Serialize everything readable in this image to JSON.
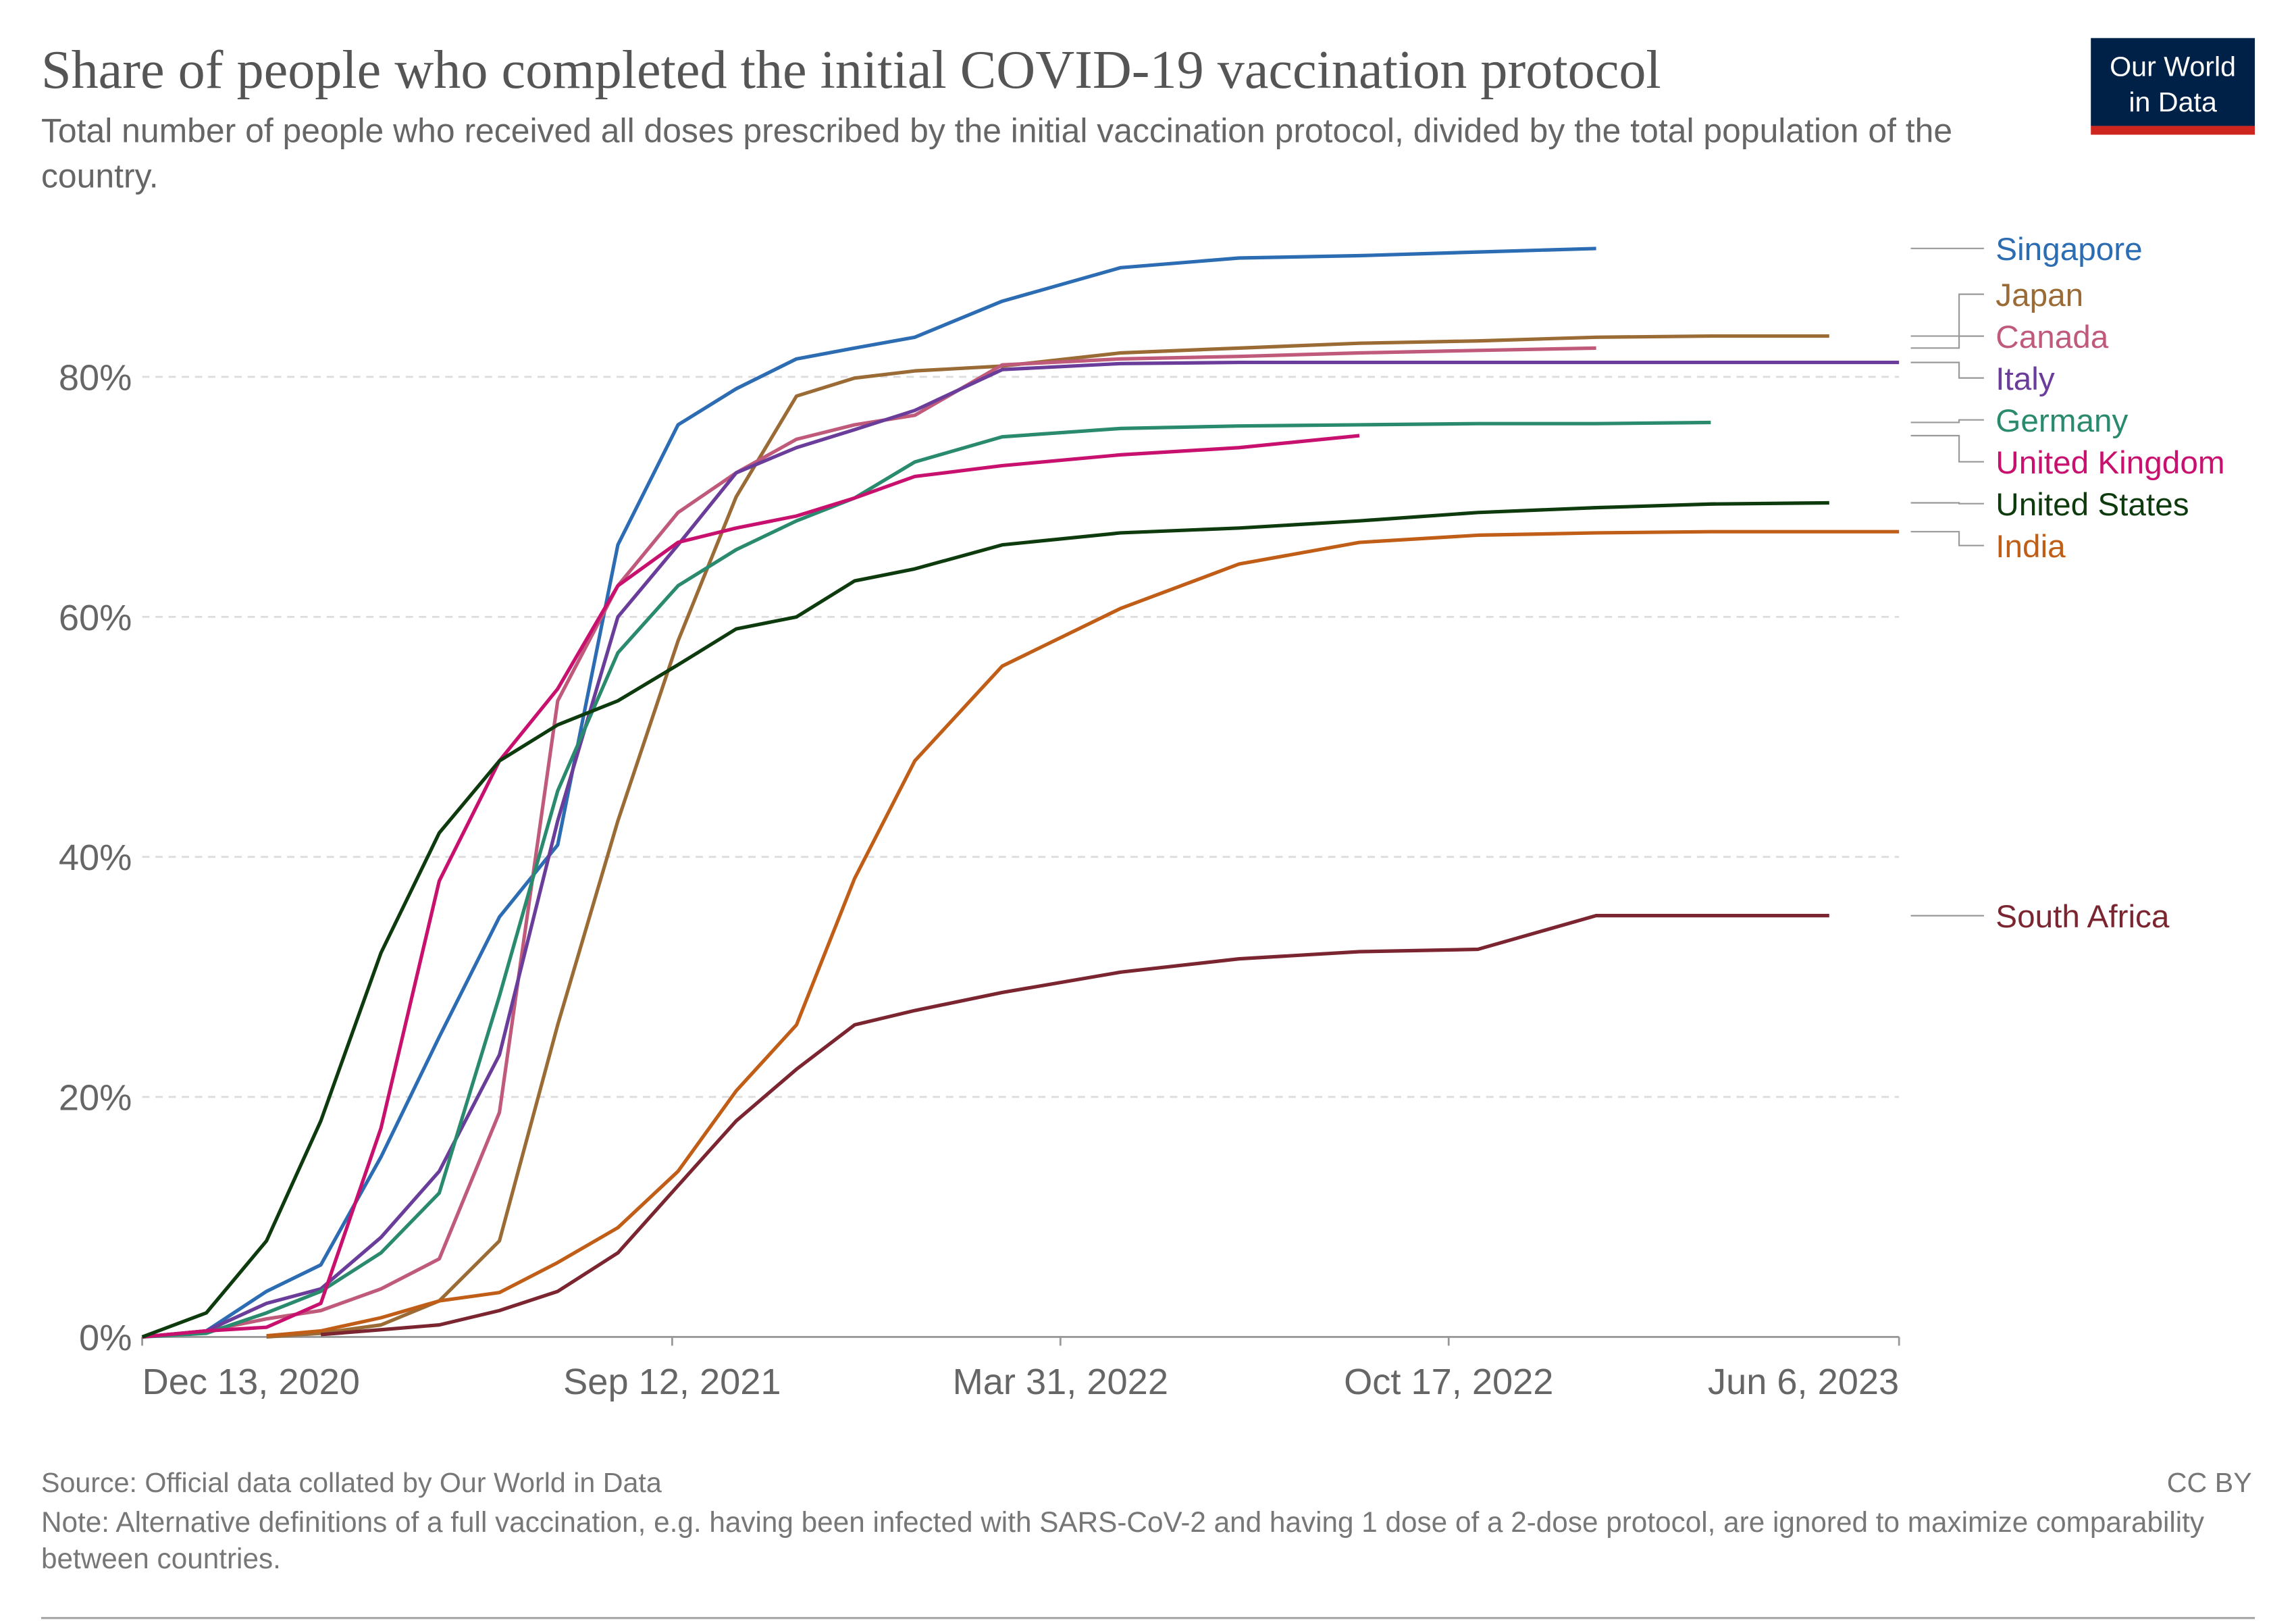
{
  "chart_data": {
    "type": "line",
    "title": "Share of people who completed the initial COVID-19 vaccination protocol",
    "subtitle": "Total number of people who received all doses prescribed by the initial vaccination protocol, divided by the total population of the country.",
    "logo": [
      "Our World",
      "in Data"
    ],
    "source": "Source: Official data collated by Our World in Data",
    "license": "CC BY",
    "note": "Note: Alternative definitions of a full vaccination, e.g. having been infected with SARS-CoV-2 and having 1 dose of a 2-dose protocol, are ignored to maximize comparability between countries.",
    "xlim": [
      "2020-12-13",
      "2023-06-06"
    ],
    "xticks": [
      {
        "value": "2020-12-13",
        "label": "Dec 13, 2020"
      },
      {
        "value": "2021-09-12",
        "label": "Sep 12, 2021"
      },
      {
        "value": "2022-03-31",
        "label": "Mar 31, 2022"
      },
      {
        "value": "2022-10-17",
        "label": "Oct 17, 2022"
      },
      {
        "value": "2023-06-06",
        "label": "Jun 6, 2023"
      }
    ],
    "ylim": [
      0,
      92
    ],
    "yticks": [
      {
        "value": 0,
        "label": "0%"
      },
      {
        "value": 20,
        "label": "20%"
      },
      {
        "value": 40,
        "label": "40%"
      },
      {
        "value": 60,
        "label": "60%"
      },
      {
        "value": 80,
        "label": "80%"
      }
    ],
    "grid": true,
    "x": [
      "2020-12-13",
      "2021-01-15",
      "2021-02-15",
      "2021-03-15",
      "2021-04-15",
      "2021-05-15",
      "2021-06-15",
      "2021-07-15",
      "2021-08-15",
      "2021-09-15",
      "2021-10-15",
      "2021-11-15",
      "2021-12-15",
      "2022-01-15",
      "2022-03-01",
      "2022-05-01",
      "2022-07-01",
      "2022-09-01",
      "2022-11-01",
      "2023-01-01",
      "2023-03-01",
      "2023-05-01",
      "2023-06-06"
    ],
    "series": [
      {
        "name": "Singapore",
        "color": "#2c6cb2",
        "values": [
          null,
          0.5,
          3.8,
          6,
          15,
          25,
          35,
          41,
          66,
          76,
          79,
          81.5,
          82.4,
          83.3,
          86.3,
          89.1,
          89.9,
          90.1,
          90.4,
          90.7,
          null,
          null,
          null
        ]
      },
      {
        "name": "Japan",
        "color": "#9a6b35",
        "values": [
          null,
          null,
          0,
          0.3,
          1,
          3,
          8,
          26,
          43,
          58,
          70,
          78.4,
          79.9,
          80.5,
          80.9,
          82,
          82.4,
          82.8,
          83,
          83.3,
          83.4,
          83.4,
          null
        ]
      },
      {
        "name": "Canada",
        "color": "#c05a7a",
        "values": [
          0,
          0.5,
          1.5,
          2.2,
          4,
          6.5,
          18.7,
          53,
          62.6,
          68.7,
          72,
          74.8,
          76,
          76.8,
          81,
          81.5,
          81.7,
          82,
          82.2,
          82.4,
          null,
          null,
          null
        ]
      },
      {
        "name": "Italy",
        "color": "#6a3d9a",
        "values": [
          0,
          0.5,
          2.8,
          4,
          8.3,
          13.8,
          23.5,
          43,
          60,
          66,
          72,
          74.1,
          75.6,
          77.2,
          80.6,
          81.1,
          81.2,
          81.2,
          81.2,
          81.2,
          81.2,
          81.2,
          81.2
        ]
      },
      {
        "name": "Germany",
        "color": "#2a8a6e",
        "values": [
          0,
          0.3,
          2,
          3.8,
          7,
          12,
          28.4,
          45.5,
          57,
          62.6,
          65.6,
          68,
          69.9,
          72.9,
          75,
          75.7,
          75.9,
          76,
          76.1,
          76.1,
          76.2,
          null,
          null
        ]
      },
      {
        "name": "United Kingdom",
        "color": "#c8106e",
        "values": [
          0,
          0.5,
          0.8,
          2.8,
          17.4,
          38,
          48,
          54,
          62.6,
          66.2,
          67.4,
          68.4,
          69.9,
          71.7,
          72.6,
          73.5,
          74.1,
          75.1,
          null,
          null,
          null,
          null,
          null
        ]
      },
      {
        "name": "United States",
        "color": "#0e3b0e",
        "values": [
          0,
          2,
          8,
          18,
          32,
          42,
          48,
          51,
          53,
          56,
          59,
          60,
          63,
          64,
          66,
          67,
          67.4,
          68,
          68.7,
          69.1,
          69.4,
          69.5,
          null
        ]
      },
      {
        "name": "India",
        "color": "#c05e17",
        "values": [
          null,
          null,
          0.1,
          0.5,
          1.6,
          3,
          3.7,
          6.2,
          9.1,
          13.8,
          20.5,
          26,
          38.2,
          48,
          55.9,
          60.7,
          64.4,
          66.2,
          66.8,
          67,
          67.1,
          67.1,
          67.1
        ]
      },
      {
        "name": "South Africa",
        "color": "#7b2530",
        "values": [
          null,
          null,
          null,
          0.2,
          0.6,
          1,
          2.2,
          3.8,
          7,
          12.6,
          18,
          22.3,
          26,
          27.2,
          28.7,
          30.4,
          31.5,
          32.1,
          32.3,
          35.1,
          35.1,
          35.1,
          null
        ]
      }
    ]
  }
}
